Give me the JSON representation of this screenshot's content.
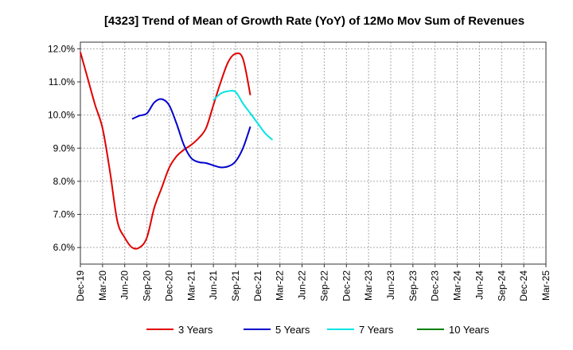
{
  "chart_data": {
    "type": "line",
    "title": "[4323]  Trend of Mean of Growth Rate (YoY) of 12Mo Mov Sum of Revenues",
    "xlabel": "",
    "ylabel": "",
    "ylim": [
      5.5,
      12.2
    ],
    "yticks": [
      6.0,
      7.0,
      8.0,
      9.0,
      10.0,
      11.0,
      12.0
    ],
    "ytick_labels": [
      "6.0%",
      "7.0%",
      "8.0%",
      "9.0%",
      "10.0%",
      "11.0%",
      "12.0%"
    ],
    "xtick_labels": [
      "Dec-19",
      "Mar-20",
      "Jun-20",
      "Sep-20",
      "Dec-20",
      "Mar-21",
      "Jun-21",
      "Sep-21",
      "Dec-21",
      "Mar-22",
      "Jun-22",
      "Sep-22",
      "Dec-22",
      "Mar-23",
      "Jun-23",
      "Sep-23",
      "Dec-23",
      "Mar-24",
      "Jun-24",
      "Sep-24",
      "Dec-24",
      "Mar-25"
    ],
    "grid": true,
    "legend_position": "bottom",
    "series": [
      {
        "name": "3 Years",
        "color": "#e00000",
        "points": [
          [
            0,
            11.9
          ],
          [
            1,
            11.1
          ],
          [
            2,
            10.3
          ],
          [
            3,
            9.6
          ],
          [
            4,
            8.3
          ],
          [
            5,
            6.8
          ],
          [
            6,
            6.3
          ],
          [
            7,
            6.0
          ],
          [
            8,
            6.0
          ],
          [
            9,
            6.3
          ],
          [
            10,
            7.2
          ],
          [
            11,
            7.8
          ],
          [
            12,
            8.4
          ],
          [
            13,
            8.75
          ],
          [
            14,
            8.95
          ],
          [
            15,
            9.1
          ],
          [
            16,
            9.3
          ],
          [
            17,
            9.6
          ],
          [
            18,
            10.3
          ],
          [
            19,
            11.0
          ],
          [
            20,
            11.6
          ],
          [
            21,
            11.85
          ],
          [
            22,
            11.7
          ],
          [
            23,
            10.6
          ]
        ]
      },
      {
        "name": "5 Years",
        "color": "#0000cc",
        "points": [
          [
            7,
            9.88
          ],
          [
            8,
            9.98
          ],
          [
            9,
            10.05
          ],
          [
            10,
            10.38
          ],
          [
            11,
            10.48
          ],
          [
            12,
            10.3
          ],
          [
            13,
            9.75
          ],
          [
            14,
            9.1
          ],
          [
            15,
            8.7
          ],
          [
            16,
            8.58
          ],
          [
            17,
            8.55
          ],
          [
            18,
            8.48
          ],
          [
            19,
            8.42
          ],
          [
            20,
            8.45
          ],
          [
            21,
            8.6
          ],
          [
            22,
            9.0
          ],
          [
            23,
            9.65
          ]
        ]
      },
      {
        "name": "7 Years",
        "color": "#00e5e5",
        "points": [
          [
            18,
            10.45
          ],
          [
            19,
            10.65
          ],
          [
            20,
            10.72
          ],
          [
            21,
            10.7
          ],
          [
            22,
            10.35
          ],
          [
            23,
            10.05
          ],
          [
            24,
            9.75
          ],
          [
            25,
            9.45
          ],
          [
            26,
            9.25
          ]
        ]
      },
      {
        "name": "10 Years",
        "color": "#008000",
        "points": []
      }
    ]
  }
}
